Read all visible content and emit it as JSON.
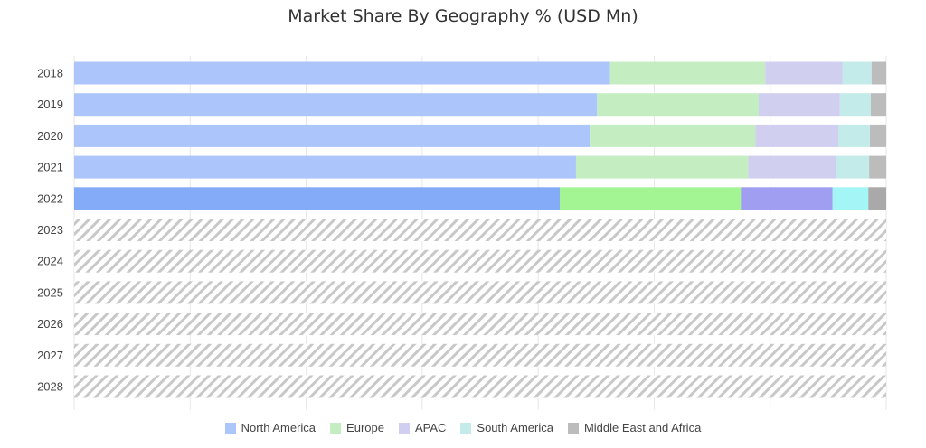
{
  "chart_data": {
    "type": "bar",
    "orientation": "horizontal",
    "stacked": true,
    "percent": true,
    "title": "Market Share By Geography % (USD Mn)",
    "categories": [
      "2018",
      "2019",
      "2020",
      "2021",
      "2022",
      "2023",
      "2024",
      "2025",
      "2026",
      "2027",
      "2028"
    ],
    "forecast_categories": [
      "2023",
      "2024",
      "2025",
      "2026",
      "2027",
      "2028"
    ],
    "xlim": [
      0,
      100
    ],
    "grid": true,
    "legend": "bottom-center",
    "series": [
      {
        "name": "North America",
        "values": [
          66.0,
          64.4,
          63.5,
          61.8,
          59.8,
          null,
          null,
          null,
          null,
          null,
          null
        ],
        "color": "#acc5fb",
        "highlight_color": "#84abf8"
      },
      {
        "name": "Europe",
        "values": [
          19.1,
          19.9,
          20.4,
          21.2,
          22.3,
          null,
          null,
          null,
          null,
          null,
          null
        ],
        "color": "#c4eec1",
        "highlight_color": "#a3f493"
      },
      {
        "name": "APAC",
        "values": [
          9.5,
          10.0,
          10.2,
          10.8,
          11.3,
          null,
          null,
          null,
          null,
          null,
          null
        ],
        "color": "#d0cff0",
        "highlight_color": "#a09ef1"
      },
      {
        "name": "South America",
        "values": [
          3.6,
          3.8,
          3.9,
          4.1,
          4.4,
          null,
          null,
          null,
          null,
          null,
          null
        ],
        "color": "#c3ebe9",
        "highlight_color": "#a3f5f6"
      },
      {
        "name": "Middle East and Africa",
        "values": [
          1.8,
          1.9,
          2.0,
          2.1,
          2.2,
          null,
          null,
          null,
          null,
          null,
          null
        ],
        "color": "#bcbcbc",
        "highlight_color": "#a9a9a9"
      }
    ],
    "highlight_category": "2022"
  }
}
